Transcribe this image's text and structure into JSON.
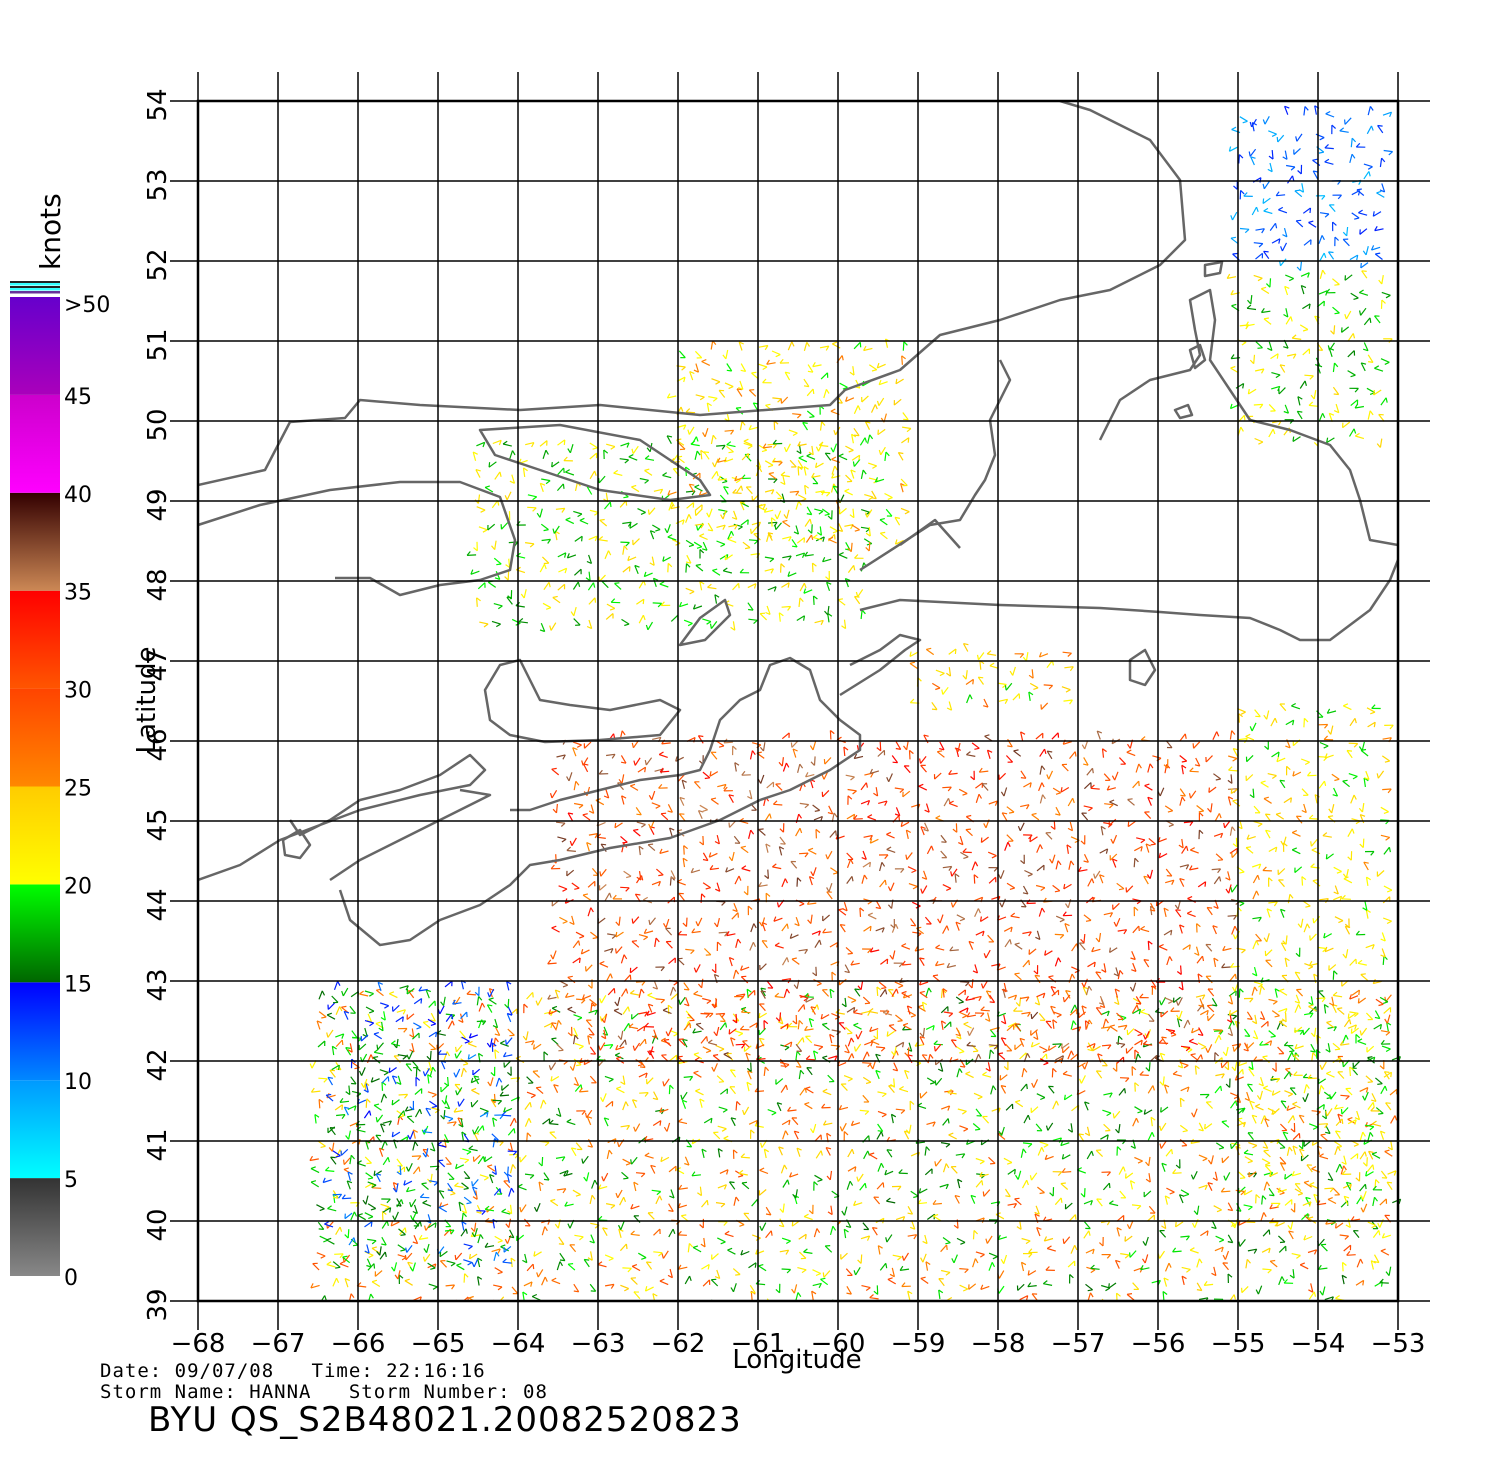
{
  "chart_data": {
    "type": "wind-vector-map",
    "xlabel": "Longitude",
    "ylabel": "Latitude",
    "xlim": [
      -68,
      -53
    ],
    "ylim": [
      39,
      54
    ],
    "x_ticks": [
      "-68",
      "-67",
      "-66",
      "-65",
      "-64",
      "-63",
      "-62",
      "-61",
      "-60",
      "-59",
      "-58",
      "-57",
      "-56",
      "-55",
      "-54",
      "-53"
    ],
    "y_ticks": [
      "39",
      "40",
      "41",
      "42",
      "43",
      "44",
      "45",
      "46",
      "47",
      "48",
      "49",
      "50",
      "51",
      "52",
      "53",
      "54"
    ],
    "grid": true,
    "colorbar": {
      "unit_label": "knots",
      "labels": [
        "0",
        "5",
        "10",
        "15",
        "20",
        "25",
        "30",
        "35",
        "40",
        "45",
        ">50"
      ],
      "bands": [
        {
          "from": 0,
          "to": 5,
          "colors": [
            "#888888",
            "#333333"
          ]
        },
        {
          "from": 5,
          "to": 10,
          "colors": [
            "#00ffff",
            "#0099ff"
          ]
        },
        {
          "from": 10,
          "to": 15,
          "colors": [
            "#0088ff",
            "#0000ff"
          ]
        },
        {
          "from": 15,
          "to": 20,
          "colors": [
            "#006600",
            "#00ff00"
          ]
        },
        {
          "from": 20,
          "to": 25,
          "colors": [
            "#ffff00",
            "#ffcc00"
          ]
        },
        {
          "from": 25,
          "to": 30,
          "colors": [
            "#ff8800",
            "#ff4400"
          ]
        },
        {
          "from": 30,
          "to": 35,
          "colors": [
            "#ff5500",
            "#ff0000"
          ]
        },
        {
          "from": 35,
          "to": 40,
          "colors": [
            "#cc8855",
            "#330000"
          ]
        },
        {
          "from": 40,
          "to": 45,
          "colors": [
            "#ff00ff",
            "#cc00cc"
          ]
        },
        {
          "from": 45,
          "to": 50,
          "colors": [
            "#aa00bb",
            "#6600cc"
          ]
        }
      ]
    },
    "coast_color": "#666666",
    "wind_regions": [
      {
        "lon": [
          -66.5,
          -53.0
        ],
        "lat": [
          39.0,
          43.0
        ],
        "speed": [
          15,
          30
        ]
      },
      {
        "lon": [
          -63.5,
          -55.0
        ],
        "lat": [
          42.0,
          46.2
        ],
        "speed": [
          25,
          38
        ]
      },
      {
        "lon": [
          -55.0,
          -53.0
        ],
        "lat": [
          40.0,
          46.5
        ],
        "speed": [
          18,
          26
        ]
      },
      {
        "lon": [
          -66.3,
          -64.0
        ],
        "lat": [
          39.5,
          43.0
        ],
        "speed": [
          10,
          20
        ]
      },
      {
        "lon": [
          -64.5,
          -59.5
        ],
        "lat": [
          47.5,
          49.8
        ],
        "speed": [
          16,
          24
        ]
      },
      {
        "lon": [
          -62.0,
          -59.0
        ],
        "lat": [
          48.5,
          51.0
        ],
        "speed": [
          19,
          26
        ]
      },
      {
        "lon": [
          -59.0,
          -57.0
        ],
        "lat": [
          46.5,
          47.3
        ],
        "speed": [
          18,
          28
        ]
      },
      {
        "lon": [
          -55.0,
          -53.0
        ],
        "lat": [
          49.8,
          52.0
        ],
        "speed": [
          16,
          24
        ]
      },
      {
        "lon": [
          -55.0,
          -53.0
        ],
        "lat": [
          52.0,
          54.0
        ],
        "speed": [
          8,
          14
        ]
      }
    ]
  },
  "footer": {
    "date_label": "Date:",
    "date": "09/07/08",
    "time_label": "Time:",
    "time": "22:16:16",
    "storm_name_label": "Storm Name:",
    "storm_name": "HANNA",
    "storm_number_label": "Storm Number:",
    "storm_number": "08",
    "title": "BYU  QS_S2B48021.20082520823"
  }
}
